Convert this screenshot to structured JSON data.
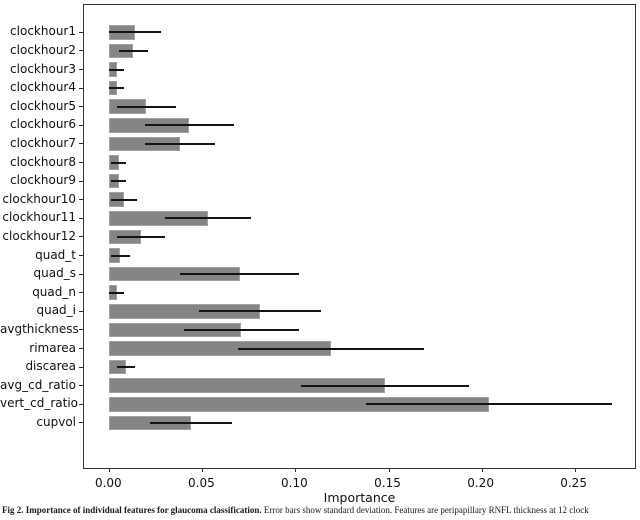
{
  "figure": {
    "caption_bold": "Fig 2. Importance of individual features for glaucoma classification.",
    "caption_rest": " Error bars show standard deviation. Features are peripapillary RNFL thickness at 12 clock"
  },
  "chart_data": {
    "type": "bar",
    "orientation": "horizontal",
    "title": "",
    "xlabel": "Importance",
    "ylabel": "",
    "categories": [
      "clockhour1",
      "clockhour2",
      "clockhour3",
      "clockhour4",
      "clockhour5",
      "clockhour6",
      "clockhour7",
      "clockhour8",
      "clockhour9",
      "clockhour10",
      "clockhour11",
      "clockhour12",
      "quad_t",
      "quad_s",
      "quad_n",
      "quad_i",
      "avgthickness",
      "rimarea",
      "discarea",
      "avg_cd_ratio",
      "vert_cd_ratio",
      "cupvol"
    ],
    "values": [
      0.014,
      0.013,
      0.004,
      0.004,
      0.02,
      0.043,
      0.038,
      0.005,
      0.005,
      0.008,
      0.053,
      0.017,
      0.006,
      0.07,
      0.004,
      0.081,
      0.071,
      0.119,
      0.009,
      0.148,
      0.204,
      0.044
    ],
    "errors": [
      0.014,
      0.008,
      0.004,
      0.004,
      0.016,
      0.024,
      0.019,
      0.004,
      0.004,
      0.007,
      0.023,
      0.013,
      0.005,
      0.032,
      0.004,
      0.033,
      0.031,
      0.05,
      0.005,
      0.045,
      0.066,
      0.022
    ],
    "error_meaning": "standard deviation",
    "xticks": [
      0.0,
      0.05,
      0.1,
      0.15,
      0.2,
      0.25
    ],
    "xlim": [
      -0.0136,
      0.2835
    ],
    "grid": false,
    "legend": "none",
    "bar_color": "#858585",
    "bar_edge_color": "#a2a2a2",
    "error_color": "#141414",
    "axis_color": "#333333"
  }
}
